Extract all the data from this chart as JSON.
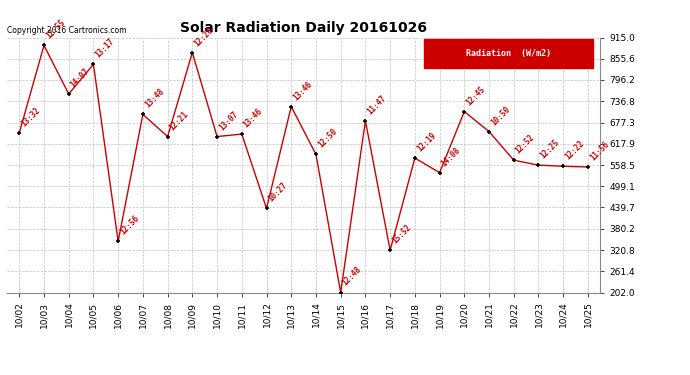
{
  "title": "Solar Radiation Daily 20161026",
  "copyright": "Copyright 2016 Cartronics.com",
  "legend_label": "Radiation  (W/m2)",
  "x_labels": [
    "10/02",
    "10/03",
    "10/04",
    "10/05",
    "10/06",
    "10/07",
    "10/08",
    "10/09",
    "10/10",
    "10/11",
    "10/12",
    "10/13",
    "10/14",
    "10/15",
    "10/16",
    "10/17",
    "10/18",
    "10/19",
    "10/20",
    "10/21",
    "10/22",
    "10/23",
    "10/24",
    "10/25"
  ],
  "y_values": [
    648,
    893,
    757,
    840,
    345,
    700,
    638,
    873,
    638,
    645,
    437,
    722,
    588,
    202,
    682,
    320,
    578,
    537,
    708,
    652,
    572,
    558,
    555,
    553
  ],
  "point_labels": [
    "13:32",
    "12:55",
    "14:07",
    "13:17",
    "12:56",
    "13:48",
    "12:21",
    "12:20",
    "13:07",
    "13:46",
    "10:27",
    "13:46",
    "12:50",
    "12:48",
    "11:47",
    "15:52",
    "12:19",
    "14:08",
    "12:45",
    "10:50",
    "12:52",
    "12:25",
    "12:22",
    "11:56"
  ],
  "ylim_min": 202.0,
  "ylim_max": 915.0,
  "ytick_values": [
    202.0,
    261.4,
    320.8,
    380.2,
    439.7,
    499.1,
    558.5,
    617.9,
    677.3,
    736.8,
    796.2,
    855.6,
    915.0
  ],
  "line_color": "#cc0000",
  "marker_color": "#000000",
  "marker_size": 8,
  "bg_color": "#ffffff",
  "grid_color": "#c0c0c0",
  "title_color": "#000000",
  "title_fontsize": 10,
  "legend_bg": "#cc0000",
  "legend_text_color": "#ffffff",
  "label_fontsize": 5.5,
  "tick_fontsize": 6.5,
  "copyright_fontsize": 5.5
}
